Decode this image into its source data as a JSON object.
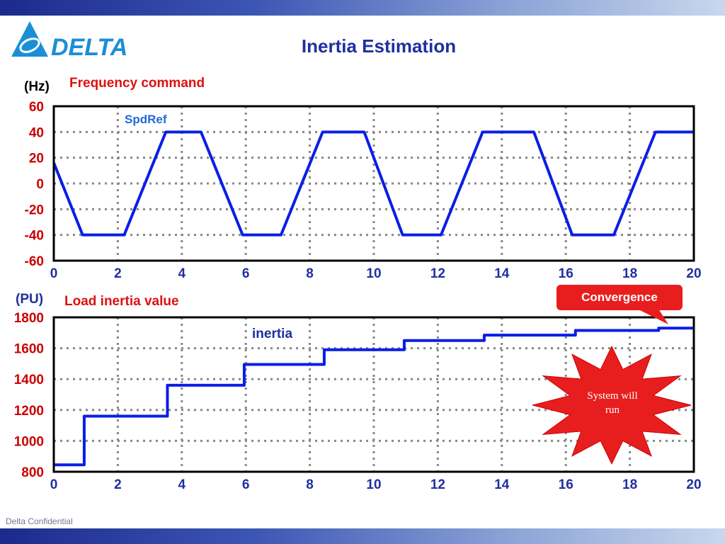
{
  "header": {
    "title": "Inertia Estimation",
    "logo_text": "DELTA"
  },
  "footer": {
    "confidential": "Delta Confidential"
  },
  "colors": {
    "series": "#0a1ee6",
    "accent_red": "#e81e1e",
    "title_blue": "#1f2f9f",
    "label_red": "#dd1111",
    "axis_red": "#cc0000"
  },
  "callouts": {
    "convergence": "Convergence",
    "system_will_run": "System will\nrun"
  },
  "chart_data": [
    {
      "type": "line",
      "title": "Frequency command",
      "unit_label": "(Hz)",
      "series_label": "SpdRef",
      "xlim": [
        0,
        20
      ],
      "ylim": [
        -60,
        60
      ],
      "xticks": [
        "0",
        "2",
        "4",
        "6",
        "8",
        "10",
        "12",
        "14",
        "16",
        "18",
        "20"
      ],
      "yticks": [
        "60",
        "40",
        "20",
        "0",
        "-20",
        "-40",
        "-60"
      ],
      "grid": true,
      "series": [
        {
          "name": "SpdRef",
          "x": [
            0,
            0.9,
            2.2,
            3.5,
            4.6,
            5.9,
            7.1,
            8.4,
            9.7,
            10.9,
            12.1,
            13.4,
            15.0,
            16.2,
            17.5,
            18.8,
            20
          ],
          "y": [
            16,
            -40,
            -40,
            40,
            40,
            -40,
            -40,
            40,
            40,
            -40,
            -40,
            40,
            40,
            -40,
            -40,
            40,
            40
          ]
        }
      ]
    },
    {
      "type": "line",
      "title": "Load inertia value",
      "unit_label": "(PU)",
      "series_label": "inertia",
      "xlim": [
        0,
        20
      ],
      "ylim": [
        800,
        1800
      ],
      "xticks": [
        "0",
        "2",
        "4",
        "6",
        "8",
        "10",
        "12",
        "14",
        "16",
        "18",
        "20"
      ],
      "yticks": [
        "1800",
        "1600",
        "1400",
        "1200",
        "1000",
        "800"
      ],
      "grid": true,
      "series": [
        {
          "name": "inertia",
          "x": [
            0,
            0.95,
            0.95,
            3.55,
            3.55,
            5.95,
            5.95,
            8.45,
            8.45,
            10.95,
            10.95,
            13.45,
            13.45,
            16.3,
            16.3,
            18.9,
            18.9,
            20
          ],
          "y": [
            845,
            845,
            1160,
            1160,
            1360,
            1360,
            1495,
            1495,
            1590,
            1590,
            1650,
            1650,
            1685,
            1685,
            1715,
            1715,
            1730,
            1730
          ]
        }
      ]
    }
  ]
}
